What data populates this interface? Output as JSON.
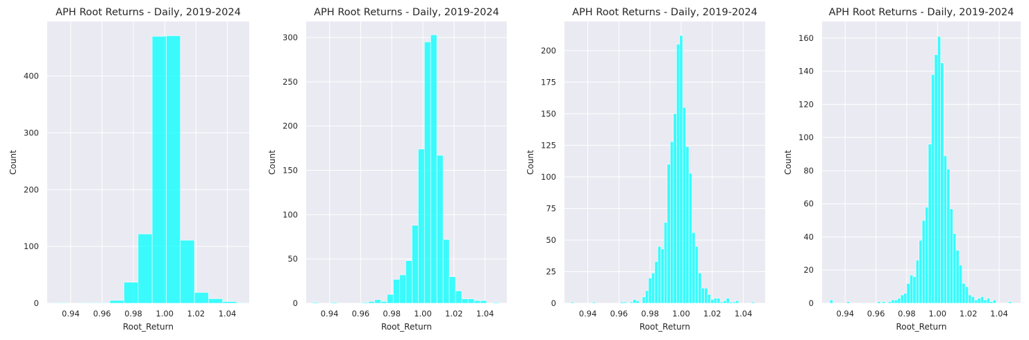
{
  "colors": {
    "bar": "#00ffff",
    "bar_opacity": 0.75,
    "background": "#eaeaf2",
    "grid": "#ffffff"
  },
  "chart_data": [
    {
      "type": "bar",
      "title": "APH Root Returns - Daily, 2019-2024",
      "xlabel": "Root_Return",
      "ylabel": "Count",
      "xlim": [
        0.925,
        1.054
      ],
      "ylim": [
        0,
        496
      ],
      "xticks": [
        "0.94",
        "0.96",
        "0.98",
        "1.00",
        "1.02",
        "1.04"
      ],
      "yticks": [
        "0",
        "100",
        "200",
        "300",
        "400"
      ],
      "grid": true,
      "bins": [
        [
          0.929,
          0.938,
          1
        ],
        [
          0.938,
          0.947,
          0
        ],
        [
          0.947,
          0.956,
          1
        ],
        [
          0.956,
          0.965,
          1
        ],
        [
          0.965,
          0.974,
          5
        ],
        [
          0.974,
          0.983,
          37
        ],
        [
          0.983,
          0.992,
          122
        ],
        [
          0.992,
          1.001,
          470
        ],
        [
          1.001,
          1.01,
          471
        ],
        [
          1.01,
          1.019,
          111
        ],
        [
          1.019,
          1.028,
          19
        ],
        [
          1.028,
          1.037,
          8
        ],
        [
          1.037,
          1.046,
          3
        ],
        [
          1.046,
          1.051,
          1
        ]
      ]
    },
    {
      "type": "bar",
      "title": "APH Root Returns - Daily, 2019-2024",
      "xlabel": "Root_Return",
      "ylabel": "Count",
      "xlim": [
        0.925,
        1.054
      ],
      "ylim": [
        0,
        318
      ],
      "xticks": [
        "0.94",
        "0.96",
        "0.98",
        "1.00",
        "1.02",
        "1.04"
      ],
      "yticks": [
        "0",
        "50",
        "100",
        "150",
        "200",
        "250",
        "300"
      ],
      "grid": true,
      "bins": [
        [
          0.929,
          0.933,
          1
        ],
        [
          0.933,
          0.937,
          0
        ],
        [
          0.937,
          0.941,
          0
        ],
        [
          0.941,
          0.945,
          1
        ],
        [
          0.945,
          0.949,
          0
        ],
        [
          0.949,
          0.953,
          0
        ],
        [
          0.953,
          0.957,
          0
        ],
        [
          0.957,
          0.961,
          0
        ],
        [
          0.961,
          0.965,
          1
        ],
        [
          0.965,
          0.969,
          2
        ],
        [
          0.969,
          0.973,
          4
        ],
        [
          0.973,
          0.977,
          2
        ],
        [
          0.977,
          0.981,
          10
        ],
        [
          0.981,
          0.985,
          27
        ],
        [
          0.985,
          0.989,
          32
        ],
        [
          0.989,
          0.993,
          48
        ],
        [
          0.993,
          0.997,
          88
        ],
        [
          0.997,
          1.001,
          174
        ],
        [
          1.001,
          1.005,
          295
        ],
        [
          1.005,
          1.009,
          303
        ],
        [
          1.009,
          1.013,
          167
        ],
        [
          1.013,
          1.017,
          72
        ],
        [
          1.017,
          1.021,
          30
        ],
        [
          1.021,
          1.025,
          14
        ],
        [
          1.025,
          1.029,
          5
        ],
        [
          1.029,
          1.033,
          5
        ],
        [
          1.033,
          1.037,
          3
        ],
        [
          1.037,
          1.041,
          3
        ],
        [
          1.041,
          1.045,
          0
        ],
        [
          1.045,
          1.049,
          1
        ]
      ]
    },
    {
      "type": "bar",
      "title": "APH Root Returns - Daily, 2019-2024",
      "xlabel": "Root_Return",
      "ylabel": "Count",
      "xlim": [
        0.925,
        1.054
      ],
      "ylim": [
        0,
        223
      ],
      "xticks": [
        "0.94",
        "0.96",
        "0.98",
        "1.00",
        "1.02",
        "1.04"
      ],
      "yticks": [
        "0",
        "25",
        "50",
        "75",
        "100",
        "125",
        "150",
        "175",
        "200"
      ],
      "grid": true,
      "bins": [
        [
          0.929,
          0.931,
          1
        ],
        [
          0.943,
          0.945,
          1
        ],
        [
          0.961,
          0.963,
          1
        ],
        [
          0.963,
          0.965,
          1
        ],
        [
          0.967,
          0.969,
          1
        ],
        [
          0.969,
          0.971,
          3
        ],
        [
          0.971,
          0.973,
          2
        ],
        [
          0.975,
          0.977,
          5
        ],
        [
          0.977,
          0.979,
          10
        ],
        [
          0.979,
          0.981,
          20
        ],
        [
          0.981,
          0.983,
          24
        ],
        [
          0.983,
          0.985,
          33
        ],
        [
          0.985,
          0.987,
          45
        ],
        [
          0.987,
          0.989,
          43
        ],
        [
          0.989,
          0.991,
          64
        ],
        [
          0.991,
          0.993,
          110
        ],
        [
          0.993,
          0.995,
          128
        ],
        [
          0.995,
          0.997,
          150
        ],
        [
          0.997,
          0.999,
          205
        ],
        [
          0.999,
          1.001,
          212
        ],
        [
          1.001,
          1.003,
          155
        ],
        [
          1.003,
          1.005,
          124
        ],
        [
          1.005,
          1.007,
          103
        ],
        [
          1.007,
          1.009,
          56
        ],
        [
          1.009,
          1.011,
          45
        ],
        [
          1.011,
          1.013,
          24
        ],
        [
          1.013,
          1.015,
          12
        ],
        [
          1.015,
          1.017,
          12
        ],
        [
          1.017,
          1.019,
          7
        ],
        [
          1.019,
          1.021,
          3
        ],
        [
          1.021,
          1.023,
          4
        ],
        [
          1.023,
          1.025,
          4
        ],
        [
          1.025,
          1.027,
          1
        ],
        [
          1.027,
          1.029,
          2
        ],
        [
          1.029,
          1.031,
          4
        ],
        [
          1.031,
          1.033,
          1
        ],
        [
          1.033,
          1.035,
          1
        ],
        [
          1.035,
          1.037,
          2
        ],
        [
          1.045,
          1.047,
          1
        ]
      ]
    },
    {
      "type": "bar",
      "title": "APH Root Returns - Daily, 2019-2024",
      "xlabel": "Root_Return",
      "ylabel": "Count",
      "xlim": [
        0.925,
        1.054
      ],
      "ylim": [
        0,
        170
      ],
      "xticks": [
        "0.94",
        "0.96",
        "0.98",
        "1.00",
        "1.02",
        "1.04"
      ],
      "yticks": [
        "0",
        "20",
        "40",
        "60",
        "80",
        "100",
        "120",
        "140",
        "160"
      ],
      "grid": true,
      "bins": [
        [
          0.93,
          0.932,
          2
        ],
        [
          0.941,
          0.943,
          1
        ],
        [
          0.961,
          0.963,
          1
        ],
        [
          0.964,
          0.966,
          1
        ],
        [
          0.968,
          0.97,
          1
        ],
        [
          0.97,
          0.972,
          2
        ],
        [
          0.972,
          0.974,
          2
        ],
        [
          0.974,
          0.976,
          3
        ],
        [
          0.976,
          0.978,
          5
        ],
        [
          0.978,
          0.98,
          6
        ],
        [
          0.98,
          0.982,
          12
        ],
        [
          0.982,
          0.984,
          17
        ],
        [
          0.984,
          0.986,
          16
        ],
        [
          0.986,
          0.988,
          26
        ],
        [
          0.988,
          0.99,
          38
        ],
        [
          0.99,
          0.992,
          50
        ],
        [
          0.992,
          0.994,
          58
        ],
        [
          0.994,
          0.996,
          96
        ],
        [
          0.996,
          0.998,
          138
        ],
        [
          0.998,
          1.0,
          150
        ],
        [
          1.0,
          1.002,
          161
        ],
        [
          1.002,
          1.004,
          145
        ],
        [
          1.004,
          1.006,
          89
        ],
        [
          1.006,
          1.008,
          81
        ],
        [
          1.008,
          1.01,
          57
        ],
        [
          1.01,
          1.012,
          42
        ],
        [
          1.012,
          1.014,
          32
        ],
        [
          1.014,
          1.016,
          23
        ],
        [
          1.016,
          1.018,
          12
        ],
        [
          1.018,
          1.02,
          10
        ],
        [
          1.02,
          1.022,
          5
        ],
        [
          1.022,
          1.024,
          4
        ],
        [
          1.024,
          1.026,
          2
        ],
        [
          1.026,
          1.028,
          3
        ],
        [
          1.028,
          1.03,
          4
        ],
        [
          1.03,
          1.032,
          2
        ],
        [
          1.032,
          1.034,
          3
        ],
        [
          1.034,
          1.036,
          1
        ],
        [
          1.036,
          1.038,
          2
        ],
        [
          1.046,
          1.048,
          1
        ]
      ]
    }
  ]
}
